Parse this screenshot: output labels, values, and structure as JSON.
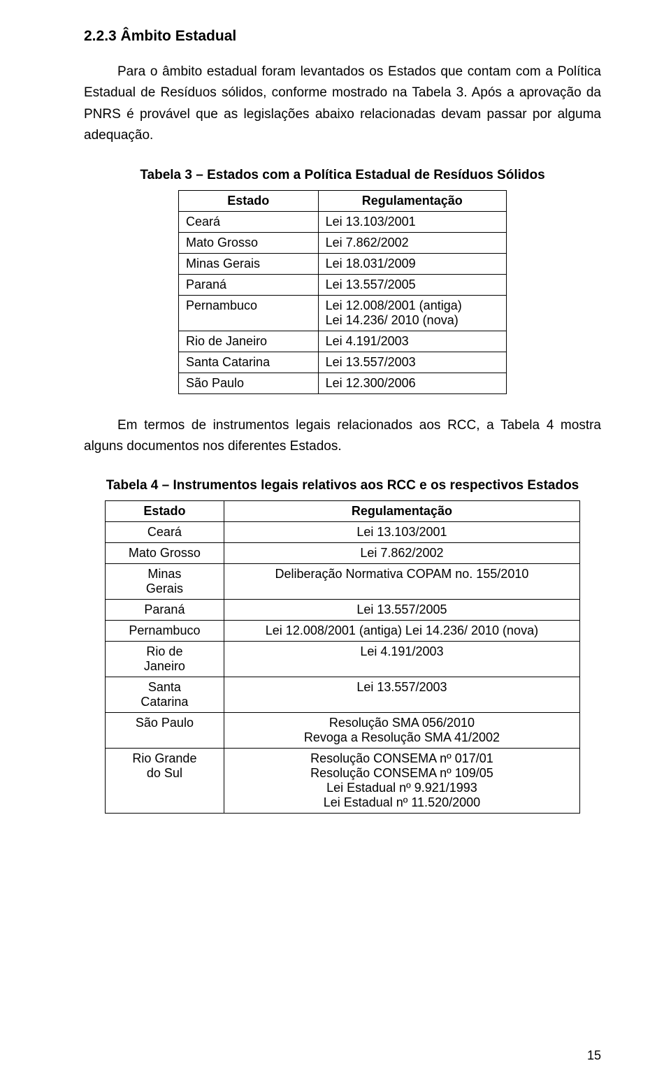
{
  "section": {
    "heading": "2.2.3 Âmbito Estadual",
    "paragraph1": "Para o âmbito estadual foram levantados os Estados que contam com a Política Estadual de Resíduos sólidos, conforme mostrado na Tabela 3. Após a aprovação da PNRS é provável que as legislações abaixo relacionadas devam passar por alguma adequação."
  },
  "table1": {
    "caption": "Tabela 3 – Estados com a Política Estadual de Resíduos Sólidos",
    "headers": {
      "col1": "Estado",
      "col2": "Regulamentação"
    },
    "rows": [
      {
        "estado": "Ceará",
        "reg": "Lei 13.103/2001"
      },
      {
        "estado": "Mato Grosso",
        "reg": "Lei 7.862/2002"
      },
      {
        "estado": "Minas Gerais",
        "reg": "Lei 18.031/2009"
      },
      {
        "estado": "Paraná",
        "reg": "Lei 13.557/2005"
      },
      {
        "estado": "Pernambuco",
        "reg": "Lei 12.008/2001 (antiga)\nLei 14.236/ 2010 (nova)"
      },
      {
        "estado": "Rio de Janeiro",
        "reg": "Lei 4.191/2003"
      },
      {
        "estado": "Santa Catarina",
        "reg": "Lei 13.557/2003"
      },
      {
        "estado": "São Paulo",
        "reg": "Lei 12.300/2006"
      }
    ]
  },
  "middle_paragraph": "Em termos de instrumentos legais relacionados aos RCC, a Tabela 4 mostra alguns documentos nos diferentes Estados.",
  "table2": {
    "caption": "Tabela 4 – Instrumentos legais relativos aos RCC e os respectivos Estados",
    "headers": {
      "col1": "Estado",
      "col2": "Regulamentação"
    },
    "rows": [
      {
        "estado": "Ceará",
        "reg": "Lei 13.103/2001"
      },
      {
        "estado": "Mato Grosso",
        "reg": "Lei 7.862/2002"
      },
      {
        "estado": "Minas\nGerais",
        "reg": "Deliberação Normativa COPAM no. 155/2010"
      },
      {
        "estado": "Paraná",
        "reg": "Lei 13.557/2005"
      },
      {
        "estado": "Pernambuco",
        "reg": "Lei 12.008/2001 (antiga) Lei 14.236/ 2010 (nova)"
      },
      {
        "estado": "Rio de\nJaneiro",
        "reg": "Lei 4.191/2003"
      },
      {
        "estado": "Santa\nCatarina",
        "reg": "Lei 13.557/2003"
      },
      {
        "estado": "São Paulo",
        "reg": "Resolução SMA 056/2010\nRevoga a Resolução SMA 41/2002"
      },
      {
        "estado": "Rio Grande\ndo Sul",
        "reg": "Resolução CONSEMA nº 017/01\nResolução CONSEMA nº 109/05\nLei Estadual nº 9.921/1993\nLei Estadual nº 11.520/2000"
      }
    ]
  },
  "page_number": "15"
}
